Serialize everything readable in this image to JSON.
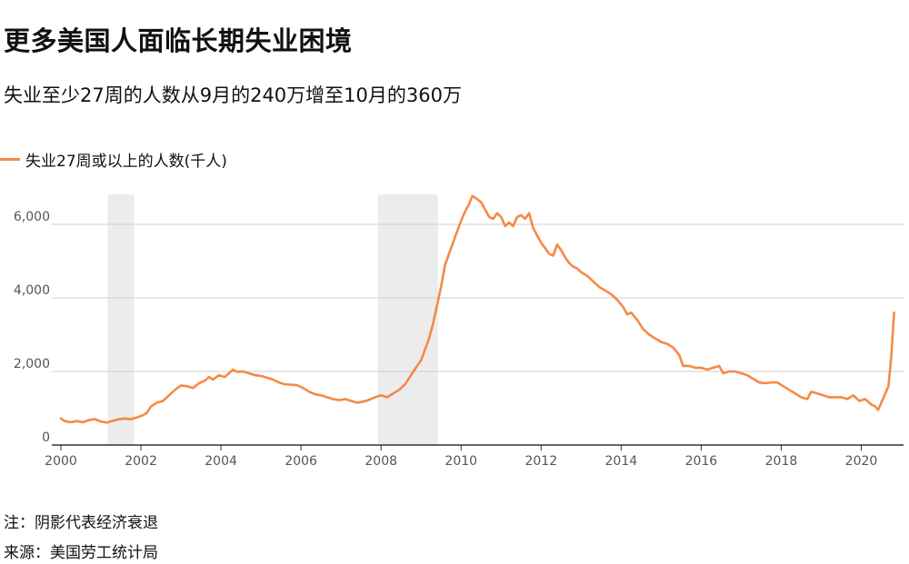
{
  "title": "更多美国人面临长期失业困境",
  "subtitle": "失业至少27周的人数从9月的240万增至10月的360万",
  "note": "注：阴影代表经济衰退",
  "source": "来源：美国劳工统计局",
  "colors": {
    "line": "#f58a45",
    "recession": "#ececec",
    "grid": "#cfcfcf",
    "axis": "#333333"
  },
  "chart_data": {
    "type": "line",
    "legend": "失业27周或以上的人数(千人)",
    "legend_position": "top-left",
    "grid": true,
    "xlim": [
      2000,
      2021.1
    ],
    "ylim": [
      0,
      6800
    ],
    "x_ticks": [
      {
        "value": 2000,
        "label": "2000"
      },
      {
        "value": 2002,
        "label": "2002"
      },
      {
        "value": 2004,
        "label": "2004"
      },
      {
        "value": 2006,
        "label": "2006"
      },
      {
        "value": 2008,
        "label": "2008"
      },
      {
        "value": 2010,
        "label": "2010"
      },
      {
        "value": 2012,
        "label": "2012"
      },
      {
        "value": 2014,
        "label": "2014"
      },
      {
        "value": 2016,
        "label": "2016"
      },
      {
        "value": 2018,
        "label": "2018"
      },
      {
        "value": 2020,
        "label": "2020"
      }
    ],
    "y_ticks": [
      {
        "value": 0,
        "label": "0"
      },
      {
        "value": 2000,
        "label": "2,000"
      },
      {
        "value": 4000,
        "label": "4,000"
      },
      {
        "value": 6000,
        "label": "6,000"
      }
    ],
    "recessions": [
      [
        2001.17,
        2001.83
      ],
      [
        2007.92,
        2009.42
      ]
    ],
    "series": [
      {
        "name": "失业27周或以上的人数(千人)",
        "points": [
          [
            2000.0,
            720
          ],
          [
            2000.1,
            650
          ],
          [
            2000.25,
            620
          ],
          [
            2000.4,
            650
          ],
          [
            2000.55,
            620
          ],
          [
            2000.7,
            680
          ],
          [
            2000.85,
            700
          ],
          [
            2001.0,
            640
          ],
          [
            2001.15,
            610
          ],
          [
            2001.3,
            660
          ],
          [
            2001.45,
            700
          ],
          [
            2001.6,
            720
          ],
          [
            2001.75,
            700
          ],
          [
            2001.9,
            750
          ],
          [
            2002.05,
            810
          ],
          [
            2002.15,
            880
          ],
          [
            2002.25,
            1050
          ],
          [
            2002.4,
            1150
          ],
          [
            2002.55,
            1200
          ],
          [
            2002.7,
            1350
          ],
          [
            2002.85,
            1500
          ],
          [
            2003.0,
            1620
          ],
          [
            2003.15,
            1600
          ],
          [
            2003.3,
            1550
          ],
          [
            2003.45,
            1680
          ],
          [
            2003.6,
            1750
          ],
          [
            2003.7,
            1850
          ],
          [
            2003.8,
            1780
          ],
          [
            2003.95,
            1900
          ],
          [
            2004.1,
            1850
          ],
          [
            2004.2,
            1950
          ],
          [
            2004.3,
            2050
          ],
          [
            2004.4,
            1990
          ],
          [
            2004.55,
            2000
          ],
          [
            2004.7,
            1950
          ],
          [
            2004.85,
            1900
          ],
          [
            2005.0,
            1880
          ],
          [
            2005.15,
            1830
          ],
          [
            2005.3,
            1780
          ],
          [
            2005.45,
            1700
          ],
          [
            2005.6,
            1650
          ],
          [
            2005.75,
            1640
          ],
          [
            2005.9,
            1630
          ],
          [
            2006.05,
            1550
          ],
          [
            2006.2,
            1450
          ],
          [
            2006.35,
            1380
          ],
          [
            2006.5,
            1350
          ],
          [
            2006.65,
            1300
          ],
          [
            2006.8,
            1250
          ],
          [
            2006.95,
            1220
          ],
          [
            2007.1,
            1250
          ],
          [
            2007.25,
            1200
          ],
          [
            2007.4,
            1150
          ],
          [
            2007.55,
            1180
          ],
          [
            2007.7,
            1230
          ],
          [
            2007.85,
            1300
          ],
          [
            2008.0,
            1350
          ],
          [
            2008.15,
            1300
          ],
          [
            2008.3,
            1400
          ],
          [
            2008.45,
            1500
          ],
          [
            2008.6,
            1650
          ],
          [
            2008.75,
            1900
          ],
          [
            2008.9,
            2150
          ],
          [
            2009.0,
            2300
          ],
          [
            2009.1,
            2600
          ],
          [
            2009.2,
            2900
          ],
          [
            2009.3,
            3300
          ],
          [
            2009.4,
            3800
          ],
          [
            2009.5,
            4300
          ],
          [
            2009.6,
            4900
          ],
          [
            2009.7,
            5200
          ],
          [
            2009.8,
            5500
          ],
          [
            2009.9,
            5800
          ],
          [
            2010.0,
            6100
          ],
          [
            2010.1,
            6350
          ],
          [
            2010.2,
            6550
          ],
          [
            2010.28,
            6770
          ],
          [
            2010.38,
            6700
          ],
          [
            2010.5,
            6600
          ],
          [
            2010.6,
            6400
          ],
          [
            2010.7,
            6200
          ],
          [
            2010.8,
            6150
          ],
          [
            2010.9,
            6300
          ],
          [
            2011.0,
            6200
          ],
          [
            2011.1,
            5950
          ],
          [
            2011.2,
            6050
          ],
          [
            2011.3,
            5950
          ],
          [
            2011.4,
            6200
          ],
          [
            2011.5,
            6250
          ],
          [
            2011.6,
            6150
          ],
          [
            2011.7,
            6300
          ],
          [
            2011.8,
            5900
          ],
          [
            2011.9,
            5700
          ],
          [
            2012.0,
            5500
          ],
          [
            2012.1,
            5350
          ],
          [
            2012.2,
            5200
          ],
          [
            2012.3,
            5150
          ],
          [
            2012.4,
            5450
          ],
          [
            2012.5,
            5300
          ],
          [
            2012.6,
            5100
          ],
          [
            2012.7,
            4950
          ],
          [
            2012.8,
            4850
          ],
          [
            2012.9,
            4800
          ],
          [
            2013.0,
            4700
          ],
          [
            2013.15,
            4600
          ],
          [
            2013.3,
            4450
          ],
          [
            2013.45,
            4300
          ],
          [
            2013.6,
            4200
          ],
          [
            2013.75,
            4100
          ],
          [
            2013.9,
            3950
          ],
          [
            2014.05,
            3750
          ],
          [
            2014.15,
            3550
          ],
          [
            2014.25,
            3600
          ],
          [
            2014.4,
            3400
          ],
          [
            2014.55,
            3150
          ],
          [
            2014.7,
            3000
          ],
          [
            2014.85,
            2900
          ],
          [
            2015.0,
            2800
          ],
          [
            2015.15,
            2750
          ],
          [
            2015.3,
            2650
          ],
          [
            2015.45,
            2450
          ],
          [
            2015.55,
            2150
          ],
          [
            2015.7,
            2150
          ],
          [
            2015.85,
            2100
          ],
          [
            2016.0,
            2100
          ],
          [
            2016.15,
            2050
          ],
          [
            2016.3,
            2100
          ],
          [
            2016.45,
            2150
          ],
          [
            2016.55,
            1950
          ],
          [
            2016.7,
            2000
          ],
          [
            2016.85,
            2000
          ],
          [
            2017.0,
            1950
          ],
          [
            2017.15,
            1900
          ],
          [
            2017.3,
            1800
          ],
          [
            2017.45,
            1700
          ],
          [
            2017.6,
            1680
          ],
          [
            2017.75,
            1700
          ],
          [
            2017.9,
            1700
          ],
          [
            2018.05,
            1600
          ],
          [
            2018.2,
            1500
          ],
          [
            2018.35,
            1400
          ],
          [
            2018.5,
            1300
          ],
          [
            2018.65,
            1250
          ],
          [
            2018.75,
            1450
          ],
          [
            2018.9,
            1400
          ],
          [
            2019.05,
            1350
          ],
          [
            2019.2,
            1300
          ],
          [
            2019.35,
            1300
          ],
          [
            2019.5,
            1300
          ],
          [
            2019.65,
            1250
          ],
          [
            2019.8,
            1350
          ],
          [
            2019.95,
            1200
          ],
          [
            2020.1,
            1250
          ],
          [
            2020.25,
            1100
          ],
          [
            2020.35,
            1050
          ],
          [
            2020.42,
            950
          ],
          [
            2020.5,
            1150
          ],
          [
            2020.6,
            1400
          ],
          [
            2020.68,
            1600
          ],
          [
            2020.75,
            2400
          ],
          [
            2020.82,
            3600
          ]
        ]
      }
    ]
  }
}
